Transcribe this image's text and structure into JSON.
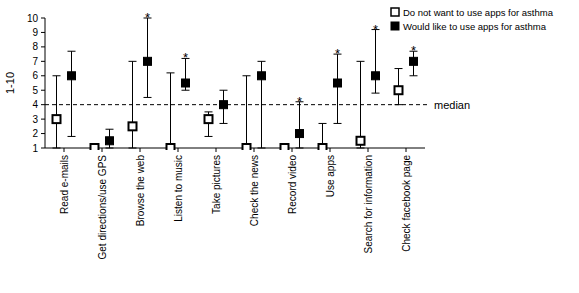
{
  "chart_data": {
    "type": "dot_error",
    "y_label": "1-10",
    "categories": [
      "Read e-mails",
      "Get directions/use GPS",
      "Browse the web",
      "Listen to music",
      "Take pictures",
      "Check the news",
      "Record video",
      "Use apps",
      "Search for information",
      "Check facebook page"
    ],
    "series": [
      {
        "name": "Do not want to use apps for asthma",
        "color": "#ffffff",
        "marker": "open_square",
        "values": [
          3,
          1,
          2.5,
          1,
          3,
          1,
          1,
          1,
          1.5,
          5
        ],
        "error_low": [
          1,
          1,
          1,
          1,
          1.8,
          1,
          1,
          1,
          1,
          4
        ],
        "error_high": [
          6,
          1,
          7,
          6.2,
          3.5,
          6,
          1,
          2.7,
          7,
          6.5
        ]
      },
      {
        "name": "Would like to use apps for asthma",
        "color": "#000000",
        "marker": "filled_square",
        "values": [
          6,
          1.5,
          7,
          5.5,
          4,
          6,
          2,
          5.5,
          6,
          7
        ],
        "error_low": [
          1.8,
          1,
          4.5,
          5,
          2.7,
          1,
          1,
          2.7,
          4.8,
          6
        ],
        "error_high": [
          7.7,
          2.3,
          10,
          7.2,
          5,
          7,
          4.2,
          7.5,
          9.2,
          7.7
        ]
      }
    ],
    "reference_line": {
      "value": 4,
      "label": "median",
      "line_style": "dashed"
    },
    "annotations": [
      {
        "category": "Browse the web",
        "text": "*"
      },
      {
        "category": "Listen to music",
        "text": "*"
      },
      {
        "category": "Record video",
        "text": "*"
      },
      {
        "category": "Use apps",
        "text": "*"
      },
      {
        "category": "Search for information",
        "text": "*"
      },
      {
        "category": "Check facebook page",
        "text": "*"
      }
    ],
    "ylim": [
      1,
      10
    ],
    "yticks": [
      1,
      2,
      3,
      4,
      5,
      6,
      7,
      8,
      9,
      10
    ],
    "grid": false,
    "legend": "top-right"
  }
}
